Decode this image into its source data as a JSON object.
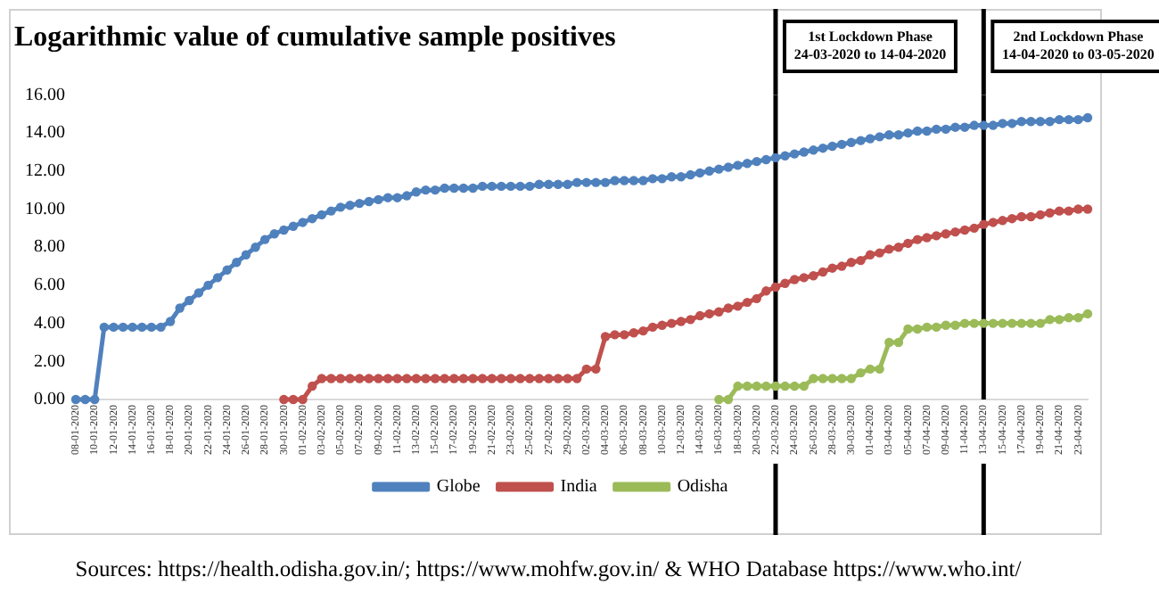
{
  "chart_data": {
    "type": "line",
    "title": "Logarithmic value of cumulative sample positives",
    "categories": [
      "08-01-2020",
      null,
      "10-01-2020",
      null,
      "12-01-2020",
      null,
      "14-01-2020",
      null,
      "16-01-2020",
      null,
      "18-01-2020",
      null,
      "20-01-2020",
      null,
      "22-01-2020",
      null,
      "24-01-2020",
      null,
      "26-01-2020",
      null,
      "28-01-2020",
      null,
      "30-01-2020",
      null,
      "01-02-2020",
      null,
      "03-02-2020",
      null,
      "05-02-2020",
      null,
      "07-02-2020",
      null,
      "09-02-2020",
      null,
      "11-02-2020",
      null,
      "13-02-2020",
      null,
      "15-02-2020",
      null,
      "17-02-2020",
      null,
      "19-02-2020",
      null,
      "21-02-2020",
      null,
      "23-02-2020",
      null,
      "25-02-2020",
      null,
      "27-02-2020",
      null,
      "29-02-2020",
      null,
      "02-03-2020",
      null,
      "04-03-2020",
      null,
      "06-03-2020",
      null,
      "08-03-2020",
      null,
      "10-03-2020",
      null,
      "12-03-2020",
      null,
      "14-03-2020",
      null,
      "16-03-2020",
      null,
      "18-03-2020",
      null,
      "20-03-2020",
      null,
      "22-03-2020",
      null,
      "24-03-2020",
      null,
      "26-03-2020",
      null,
      "28-03-2020",
      null,
      "30-03-2020",
      null,
      "01-04-2020",
      null,
      "03-04-2020",
      null,
      "05-04-2020",
      null,
      "07-04-2020",
      null,
      "09-04-2020",
      null,
      "11-04-2020",
      null,
      "13-04-2020",
      null,
      "15-04-2020",
      null,
      "17-04-2020",
      null,
      "19-04-2020",
      null,
      "21-04-2020",
      null,
      "23-04-2020",
      null
    ],
    "series": [
      {
        "name": "Globe",
        "color": "#4f81bd",
        "values": [
          0,
          0,
          0,
          3.8,
          3.8,
          3.8,
          3.8,
          3.8,
          3.8,
          3.8,
          4.1,
          4.8,
          5.2,
          5.6,
          6.0,
          6.4,
          6.8,
          7.2,
          7.6,
          8.0,
          8.4,
          8.7,
          8.9,
          9.1,
          9.3,
          9.5,
          9.7,
          9.9,
          10.1,
          10.2,
          10.3,
          10.4,
          10.5,
          10.6,
          10.6,
          10.7,
          10.9,
          11.0,
          11.0,
          11.1,
          11.1,
          11.1,
          11.1,
          11.2,
          11.2,
          11.2,
          11.2,
          11.2,
          11.2,
          11.3,
          11.3,
          11.3,
          11.3,
          11.4,
          11.4,
          11.4,
          11.4,
          11.5,
          11.5,
          11.5,
          11.5,
          11.6,
          11.6,
          11.7,
          11.7,
          11.8,
          11.9,
          12.0,
          12.1,
          12.2,
          12.3,
          12.4,
          12.5,
          12.6,
          12.7,
          12.8,
          12.9,
          13.0,
          13.1,
          13.2,
          13.3,
          13.4,
          13.5,
          13.6,
          13.7,
          13.8,
          13.9,
          13.9,
          14.0,
          14.1,
          14.1,
          14.2,
          14.2,
          14.3,
          14.3,
          14.4,
          14.4,
          14.4,
          14.5,
          14.5,
          14.6,
          14.6,
          14.6,
          14.6,
          14.7,
          14.7,
          14.7,
          14.8
        ]
      },
      {
        "name": "India",
        "color": "#c0504d",
        "values": [
          null,
          null,
          null,
          null,
          null,
          null,
          null,
          null,
          null,
          null,
          null,
          null,
          null,
          null,
          null,
          null,
          null,
          null,
          null,
          null,
          null,
          null,
          0,
          0,
          0,
          0.7,
          1.1,
          1.1,
          1.1,
          1.1,
          1.1,
          1.1,
          1.1,
          1.1,
          1.1,
          1.1,
          1.1,
          1.1,
          1.1,
          1.1,
          1.1,
          1.1,
          1.1,
          1.1,
          1.1,
          1.1,
          1.1,
          1.1,
          1.1,
          1.1,
          1.1,
          1.1,
          1.1,
          1.1,
          1.6,
          1.6,
          3.3,
          3.4,
          3.4,
          3.5,
          3.6,
          3.8,
          3.9,
          4.0,
          4.1,
          4.2,
          4.4,
          4.5,
          4.6,
          4.8,
          4.9,
          5.1,
          5.3,
          5.7,
          5.9,
          6.1,
          6.3,
          6.4,
          6.5,
          6.7,
          6.9,
          7.0,
          7.2,
          7.3,
          7.6,
          7.7,
          7.9,
          8.0,
          8.2,
          8.4,
          8.5,
          8.6,
          8.7,
          8.8,
          8.9,
          9.0,
          9.2,
          9.3,
          9.4,
          9.5,
          9.6,
          9.6,
          9.7,
          9.8,
          9.9,
          9.9,
          10.0,
          10.0
        ]
      },
      {
        "name": "Odisha",
        "color": "#9bbb59",
        "values": [
          null,
          null,
          null,
          null,
          null,
          null,
          null,
          null,
          null,
          null,
          null,
          null,
          null,
          null,
          null,
          null,
          null,
          null,
          null,
          null,
          null,
          null,
          null,
          null,
          null,
          null,
          null,
          null,
          null,
          null,
          null,
          null,
          null,
          null,
          null,
          null,
          null,
          null,
          null,
          null,
          null,
          null,
          null,
          null,
          null,
          null,
          null,
          null,
          null,
          null,
          null,
          null,
          null,
          null,
          null,
          null,
          null,
          null,
          null,
          null,
          null,
          null,
          null,
          null,
          null,
          null,
          null,
          null,
          0,
          0,
          0.7,
          0.7,
          0.7,
          0.7,
          0.7,
          0.7,
          0.7,
          0.7,
          1.1,
          1.1,
          1.1,
          1.1,
          1.1,
          1.4,
          1.6,
          1.6,
          3.0,
          3.0,
          3.7,
          3.7,
          3.8,
          3.8,
          3.9,
          3.9,
          4.0,
          4.0,
          4.0,
          4.0,
          4.0,
          4.0,
          4.0,
          4.0,
          4.0,
          4.2,
          4.2,
          4.3,
          4.3,
          4.5
        ]
      }
    ],
    "ylim": [
      0,
      16
    ],
    "yticks": [
      {
        "value": 0,
        "label": "0.00"
      },
      {
        "value": 2,
        "label": "2.00"
      },
      {
        "value": 4,
        "label": "4.00"
      },
      {
        "value": 6,
        "label": "6.00"
      },
      {
        "value": 8,
        "label": "8.00"
      },
      {
        "value": 10,
        "label": "10.00"
      },
      {
        "value": 12,
        "label": "12.00"
      },
      {
        "value": 14,
        "label": "14.00"
      },
      {
        "value": 16,
        "label": "16.00"
      }
    ],
    "grid": false,
    "legend": "bottom",
    "marker": "circle",
    "line_style": "solid",
    "ref_lines": [
      {
        "axis": "x",
        "value": "22-03-2020",
        "label": "1st Lockdown Phase 24-03-2020 to 14-04-2020",
        "color": "#000000"
      },
      {
        "axis": "x",
        "value": "13-04-2020",
        "label": "2nd Lockdown Phase 14-04-2020 to 03-05-2020",
        "color": "#000000"
      }
    ],
    "annotations": [
      "Sources: https://health.odisha.gov.in/; https://www.mohfw.gov.in/ & WHO Database https://www.who.int/"
    ]
  }
}
